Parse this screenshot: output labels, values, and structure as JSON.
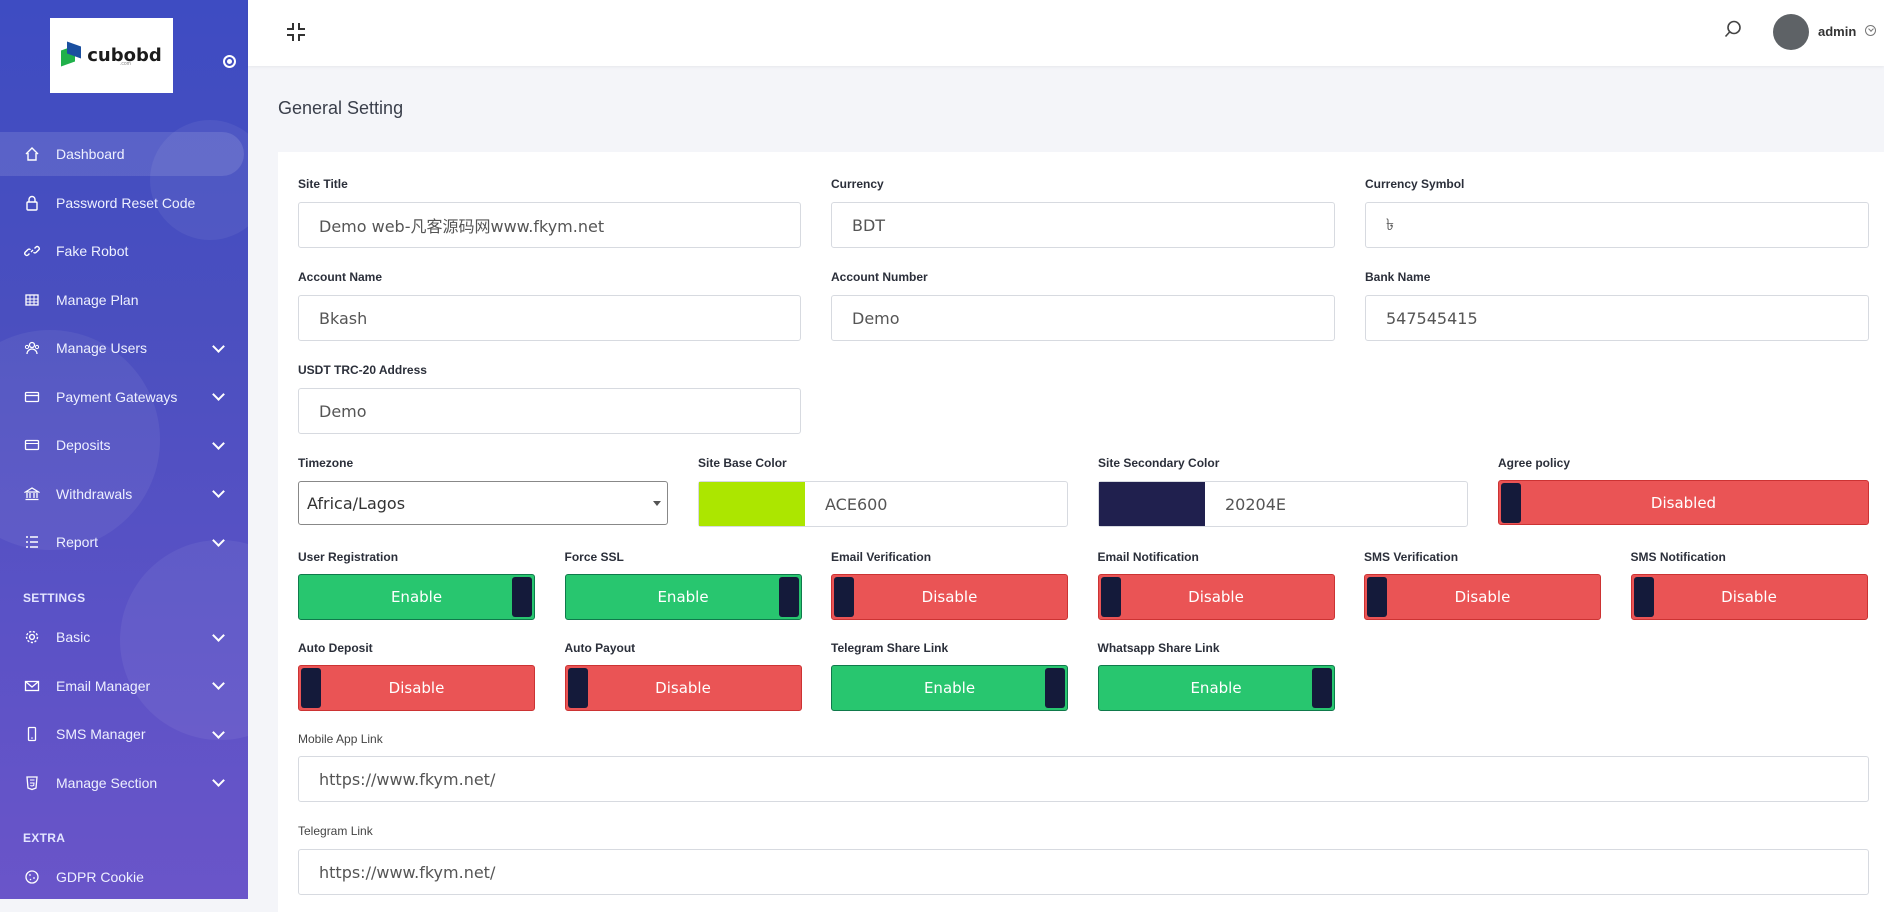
{
  "sidebar": {
    "logo_text": "cubobd",
    "logo_sub": ".com",
    "items": [
      {
        "label": "Dashboard",
        "icon": "home-icon",
        "active": true,
        "chevron": false
      },
      {
        "label": "Password Reset Code",
        "icon": "lock-icon",
        "chevron": false
      },
      {
        "label": "Fake Robot",
        "icon": "link-icon",
        "chevron": false
      },
      {
        "label": "Manage Plan",
        "icon": "grid-icon",
        "chevron": false
      },
      {
        "label": "Manage Users",
        "icon": "users-icon",
        "chevron": true
      },
      {
        "label": "Payment Gateways",
        "icon": "card-icon",
        "chevron": true
      },
      {
        "label": "Deposits",
        "icon": "wallet-icon",
        "chevron": true
      },
      {
        "label": "Withdrawals",
        "icon": "bank-icon",
        "chevron": true
      },
      {
        "label": "Report",
        "icon": "list-icon",
        "chevron": true
      }
    ],
    "settings_heading": "SETTINGS",
    "settings_items": [
      {
        "label": "Basic",
        "icon": "gear-icon",
        "chevron": true
      },
      {
        "label": "Email Manager",
        "icon": "mail-icon",
        "chevron": true
      },
      {
        "label": "SMS Manager",
        "icon": "phone-icon",
        "chevron": true
      },
      {
        "label": "Manage Section",
        "icon": "html-icon",
        "chevron": true
      }
    ],
    "extra_heading": "EXTRA",
    "extra_items": [
      {
        "label": "GDPR Cookie",
        "icon": "cookie-icon",
        "chevron": false
      }
    ]
  },
  "header": {
    "user_name": "admin"
  },
  "page_title": "General Setting",
  "form": {
    "site_title": {
      "label": "Site Title",
      "value": "Demo web-凡客源码网www.fkym.net"
    },
    "currency": {
      "label": "Currency",
      "value": "BDT"
    },
    "currency_symbol": {
      "label": "Currency Symbol",
      "value": "৳"
    },
    "account_name": {
      "label": "Account Name",
      "value": "Bkash"
    },
    "account_number": {
      "label": "Account Number",
      "value": "Demo"
    },
    "bank_name": {
      "label": "Bank Name",
      "value": "547545415"
    },
    "usdt_address": {
      "label": "USDT TRC-20 Address",
      "value": "Demo"
    },
    "timezone": {
      "label": "Timezone",
      "value": "Africa/Lagos"
    },
    "base_color": {
      "label": "Site Base Color",
      "value": "ACE600",
      "hex": "#ACE600"
    },
    "secondary_color": {
      "label": "Site Secondary Color",
      "value": "20204E",
      "hex": "#20204E"
    },
    "agree_policy": {
      "label": "Agree policy",
      "state": "Disabled"
    },
    "toggles_row1": [
      {
        "label": "User Registration",
        "state": "Enable",
        "on": true
      },
      {
        "label": "Force SSL",
        "state": "Enable",
        "on": true
      },
      {
        "label": "Email Verification",
        "state": "Disable",
        "on": false
      },
      {
        "label": "Email Notification",
        "state": "Disable",
        "on": false
      },
      {
        "label": "SMS Verification",
        "state": "Disable",
        "on": false
      },
      {
        "label": "SMS Notification",
        "state": "Disable",
        "on": false
      }
    ],
    "toggles_row2": [
      {
        "label": "Auto Deposit",
        "state": "Disable",
        "on": false
      },
      {
        "label": "Auto Payout",
        "state": "Disable",
        "on": false
      },
      {
        "label": "Telegram Share Link",
        "state": "Enable",
        "on": true
      },
      {
        "label": "Whatsapp Share Link",
        "state": "Enable",
        "on": true
      }
    ],
    "mobile_app_link": {
      "label": "Mobile App Link",
      "value": "https://www.fkym.net/"
    },
    "telegram_link": {
      "label": "Telegram Link",
      "value": "https://www.fkym.net/"
    }
  },
  "colors": {
    "enable": "#28c66f",
    "disable": "#ea5455",
    "knob": "#141a3a",
    "sidebar": "#4a4fbf"
  }
}
